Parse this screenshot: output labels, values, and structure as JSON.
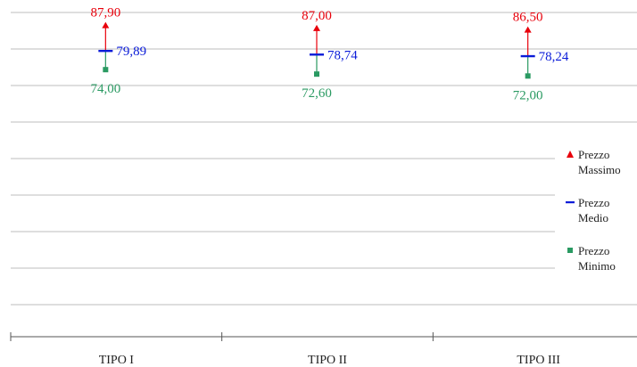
{
  "chart_data": {
    "type": "high-low-close",
    "categories": [
      "TIPO I",
      "TIPO II",
      "TIPO III"
    ],
    "series": [
      {
        "name": "Prezzo Massimo",
        "values": [
          87.9,
          87.0,
          86.5
        ],
        "labels": [
          "87,90",
          "87,00",
          "86,50"
        ],
        "color": "#e8000b",
        "marker": "triangle"
      },
      {
        "name": "Prezzo Medio",
        "values": [
          79.89,
          78.74,
          78.24
        ],
        "labels": [
          "79,89",
          "78,74",
          "78,24"
        ],
        "color": "#0a1bd8",
        "marker": "dash"
      },
      {
        "name": "Prezzo Minimo",
        "values": [
          74.0,
          72.6,
          72.0
        ],
        "labels": [
          "74,00",
          "72,60",
          "72,00"
        ],
        "color": "#2a9a62",
        "marker": "square"
      }
    ],
    "ylim": [
      0,
      92
    ],
    "gridlines": true,
    "legend_position": "right"
  }
}
